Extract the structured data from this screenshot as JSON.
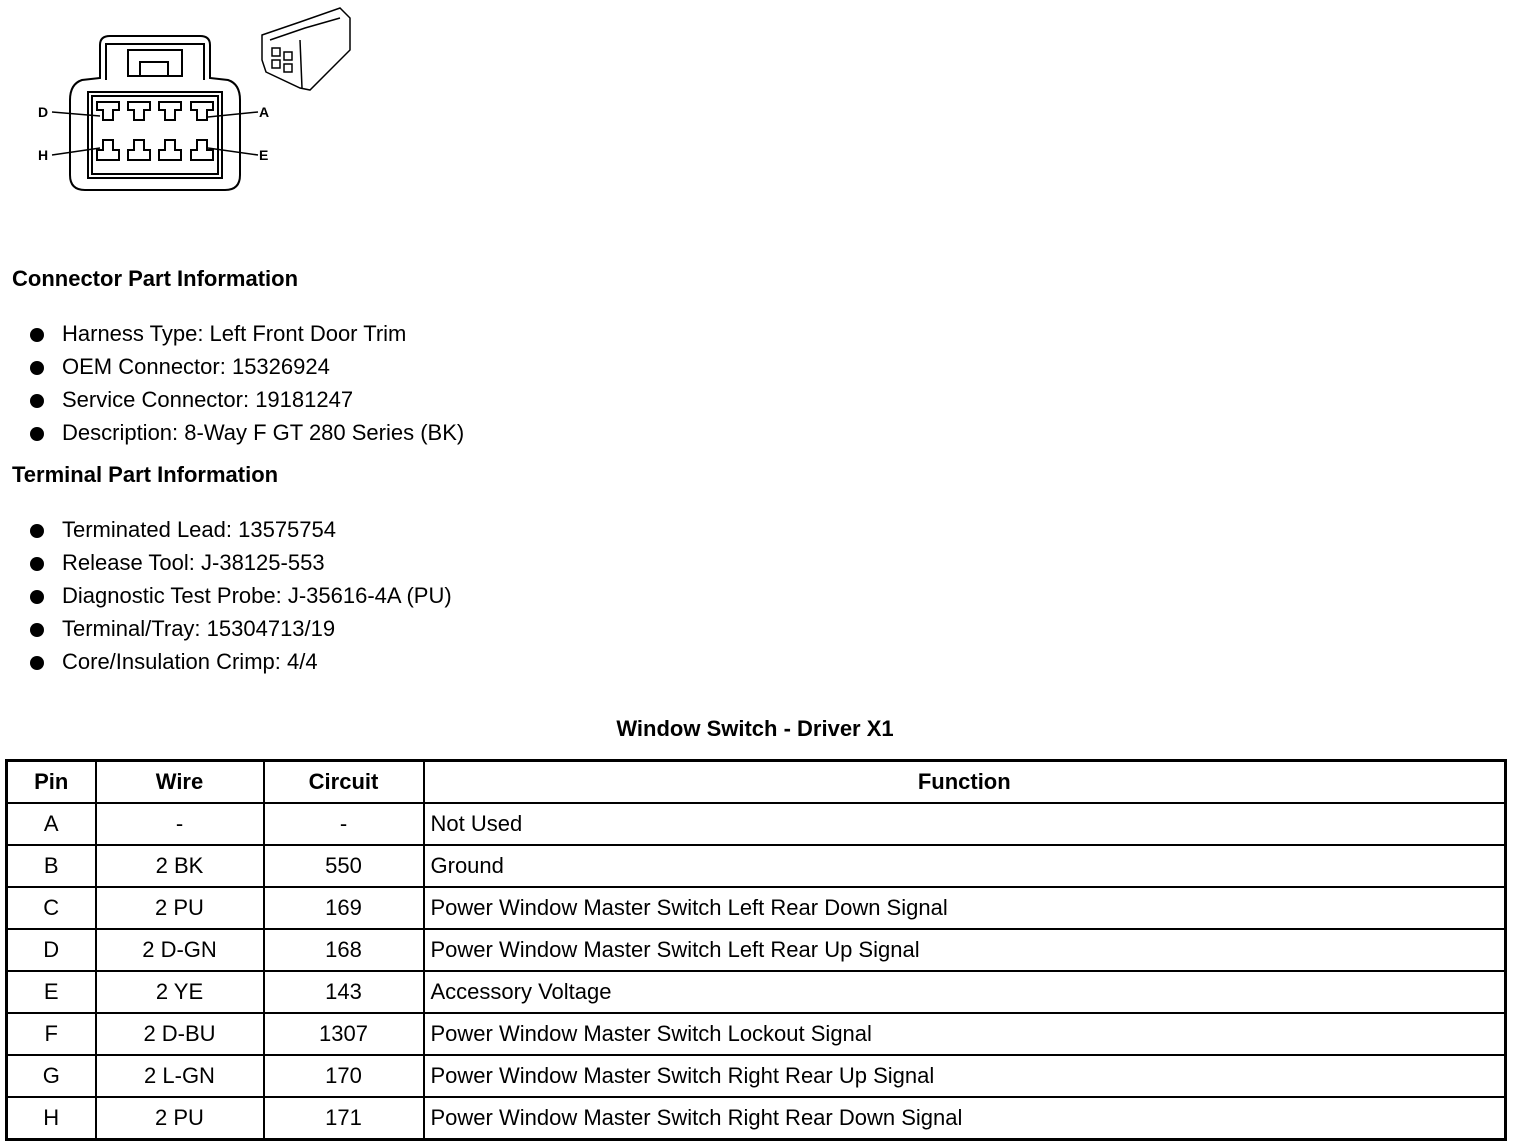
{
  "connector_diagram": {
    "pin_labels": [
      "D",
      "A",
      "H",
      "E"
    ]
  },
  "connector_part_info": {
    "heading": "Connector Part Information",
    "items": [
      "Harness Type: Left Front Door Trim",
      "OEM Connector: 15326924",
      "Service Connector: 19181247",
      "Description: 8-Way F GT 280 Series (BK)"
    ]
  },
  "terminal_part_info": {
    "heading": "Terminal Part Information",
    "items": [
      "Terminated Lead: 13575754",
      "Release Tool: J-38125-553",
      "Diagnostic Test Probe: J-35616-4A (PU)",
      "Terminal/Tray: 15304713/19",
      "Core/Insulation Crimp: 4/4"
    ]
  },
  "table": {
    "caption": "Window Switch - Driver X1",
    "headers": [
      "Pin",
      "Wire",
      "Circuit",
      "Function"
    ],
    "rows": [
      [
        "A",
        "-",
        "-",
        "Not Used"
      ],
      [
        "B",
        "2 BK",
        "550",
        "Ground"
      ],
      [
        "C",
        "2 PU",
        "169",
        "Power Window Master Switch Left Rear Down Signal"
      ],
      [
        "D",
        "2 D-GN",
        "168",
        "Power Window Master Switch Left Rear Up Signal"
      ],
      [
        "E",
        "2 YE",
        "143",
        "Accessory Voltage"
      ],
      [
        "F",
        "2 D-BU",
        "1307",
        "Power Window Master Switch Lockout Signal"
      ],
      [
        "G",
        "2 L-GN",
        "170",
        "Power Window Master Switch Right Rear Up Signal"
      ],
      [
        "H",
        "2 PU",
        "171",
        "Power Window Master Switch Right Rear Down Signal"
      ]
    ]
  }
}
